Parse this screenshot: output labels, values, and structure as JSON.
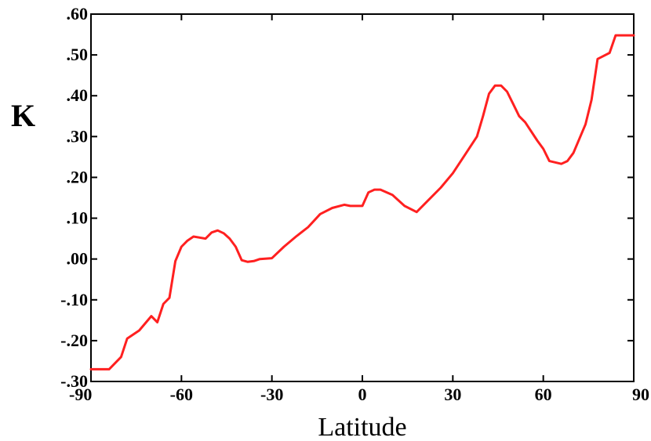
{
  "chart_data": {
    "type": "line",
    "title": "",
    "xlabel": "Latitude",
    "ylabel": "K",
    "xlim": [
      -90,
      90
    ],
    "ylim": [
      -0.3,
      0.6
    ],
    "xticks": [
      "-90",
      "-60",
      "-30",
      "0",
      "30",
      "60",
      "90"
    ],
    "yticks": [
      ".60",
      ".50",
      ".40",
      ".30",
      ".20",
      ".10",
      ".00",
      "-.10",
      "-.20",
      "-.30"
    ],
    "grid": false,
    "series": [
      {
        "color": "#ff2020",
        "x": [
          -90,
          -84,
          -80,
          -78,
          -74,
          -70,
          -68,
          -66,
          -64,
          -62,
          -60,
          -58,
          -56,
          -52,
          -50,
          -48,
          -46,
          -44,
          -42,
          -40,
          -38,
          -36,
          -34,
          -30,
          -26,
          -22,
          -18,
          -14,
          -10,
          -6,
          -4,
          0,
          2,
          4,
          6,
          10,
          14,
          18,
          22,
          26,
          30,
          34,
          38,
          40,
          42,
          44,
          46,
          48,
          50,
          52,
          54,
          58,
          60,
          62,
          66,
          68,
          70,
          74,
          76,
          78,
          82,
          84,
          86,
          90
        ],
        "y": [
          -0.27,
          -0.27,
          -0.24,
          -0.195,
          -0.175,
          -0.14,
          -0.155,
          -0.11,
          -0.095,
          -0.005,
          0.03,
          0.045,
          0.055,
          0.05,
          0.065,
          0.07,
          0.063,
          0.05,
          0.03,
          -0.003,
          -0.007,
          -0.005,
          0.0,
          0.002,
          0.03,
          0.055,
          0.078,
          0.11,
          0.125,
          0.133,
          0.13,
          0.13,
          0.163,
          0.17,
          0.17,
          0.157,
          0.13,
          0.115,
          0.145,
          0.175,
          0.21,
          0.255,
          0.3,
          0.35,
          0.405,
          0.425,
          0.425,
          0.41,
          0.38,
          0.35,
          0.335,
          0.29,
          0.27,
          0.24,
          0.233,
          0.24,
          0.26,
          0.33,
          0.39,
          0.49,
          0.505,
          0.548,
          0.548,
          0.548
        ]
      }
    ]
  }
}
